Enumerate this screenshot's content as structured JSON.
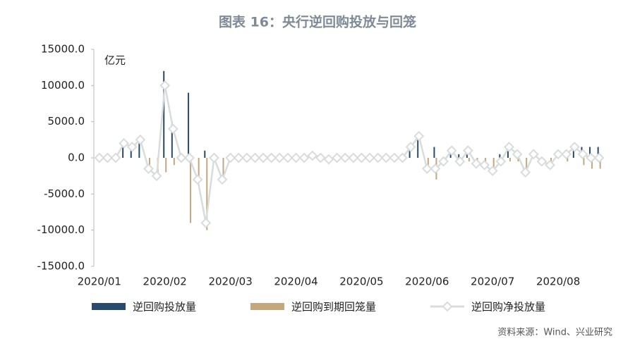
{
  "chart_data": {
    "type": "bar-line",
    "title": "图表 16：央行逆回购投放与回笼",
    "y_label": "亿元",
    "source": "资料来源：Wind、兴业研究",
    "categories": [
      "2020/01",
      null,
      null,
      null,
      null,
      null,
      null,
      null,
      "2020/02",
      null,
      null,
      null,
      null,
      null,
      null,
      null,
      "2020/03",
      null,
      null,
      null,
      null,
      null,
      null,
      null,
      "2020/04",
      null,
      null,
      null,
      null,
      null,
      null,
      null,
      "2020/05",
      null,
      null,
      null,
      null,
      null,
      null,
      null,
      "2020/06",
      null,
      null,
      null,
      null,
      null,
      null,
      null,
      "2020/07",
      null,
      null,
      null,
      null,
      null,
      null,
      null,
      "2020/08",
      null,
      null,
      null,
      null,
      null
    ],
    "series": [
      {
        "name": "逆回购投放量",
        "kind": "bar",
        "color": "#284a6c",
        "values": [
          0,
          0,
          0,
          2000,
          1500,
          2500,
          0,
          0,
          12000,
          5000,
          0,
          9000,
          0,
          1000,
          0,
          0,
          0,
          0,
          0,
          0,
          0,
          0,
          0,
          0,
          0,
          0,
          300,
          0,
          0,
          0,
          0,
          0,
          0,
          0,
          0,
          0,
          0,
          0,
          1500,
          3000,
          0,
          1500,
          0,
          1000,
          500,
          1500,
          0,
          0,
          0,
          500,
          2000,
          1000,
          0,
          500,
          0,
          0,
          500,
          1000,
          1500,
          1500,
          1500,
          1500
        ]
      },
      {
        "name": "逆回购到期回笼量",
        "kind": "bar",
        "color": "#c4a77d",
        "values": [
          0,
          0,
          0,
          0,
          0,
          0,
          -1500,
          -2500,
          -2000,
          -1000,
          0,
          -9000,
          -3000,
          -10000,
          0,
          -3000,
          0,
          0,
          0,
          0,
          0,
          0,
          0,
          0,
          0,
          0,
          0,
          0,
          -200,
          0,
          0,
          0,
          0,
          0,
          0,
          0,
          0,
          0,
          0,
          0,
          -1500,
          -3000,
          -500,
          0,
          -1000,
          -500,
          -800,
          -1000,
          -1800,
          -1000,
          -500,
          -500,
          -2000,
          0,
          -500,
          -1000,
          0,
          -500,
          0,
          -1000,
          -1500,
          -1500
        ]
      },
      {
        "name": "逆回购净投放量",
        "kind": "line",
        "color": "#d9dcdc",
        "values": [
          0,
          0,
          0,
          2000,
          1500,
          2500,
          -1500,
          -2500,
          10000,
          4000,
          0,
          0,
          -3000,
          -9000,
          0,
          -3000,
          0,
          0,
          0,
          0,
          0,
          0,
          0,
          0,
          0,
          0,
          300,
          0,
          -200,
          0,
          0,
          0,
          0,
          0,
          0,
          0,
          0,
          0,
          1500,
          3000,
          -1500,
          -1500,
          -500,
          1000,
          -500,
          1000,
          -800,
          -1000,
          -1800,
          -500,
          1500,
          500,
          -2000,
          500,
          -500,
          -1000,
          500,
          500,
          1500,
          500,
          0,
          0
        ]
      }
    ],
    "ylim": [
      -15000,
      15000
    ],
    "yticks": [
      {
        "value": -15000,
        "label": "-15000.0"
      },
      {
        "value": -10000,
        "label": "-10000.0"
      },
      {
        "value": -5000,
        "label": "-5000.0"
      },
      {
        "value": 0,
        "label": "0.0"
      },
      {
        "value": 5000,
        "label": "5000.0"
      },
      {
        "value": 10000,
        "label": "10000.0"
      },
      {
        "value": 15000,
        "label": "15000.0"
      }
    ]
  }
}
